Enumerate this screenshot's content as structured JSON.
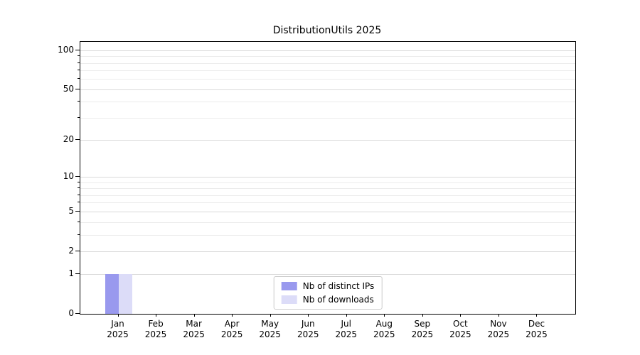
{
  "chart_data": {
    "type": "bar",
    "title": "DistributionUtils 2025",
    "x_categories": [
      "Jan",
      "Feb",
      "Mar",
      "Apr",
      "May",
      "Jun",
      "Jul",
      "Aug",
      "Sep",
      "Oct",
      "Nov",
      "Dec"
    ],
    "x_year_label": "2025",
    "series": [
      {
        "name": "Nb of distinct IPs",
        "color": "#9999ee",
        "values": [
          1,
          0,
          0,
          0,
          0,
          0,
          0,
          0,
          0,
          0,
          0,
          0
        ]
      },
      {
        "name": "Nb of downloads",
        "color": "#dcdcf8",
        "values": [
          1,
          0,
          0,
          0,
          0,
          0,
          0,
          0,
          0,
          0,
          0,
          0
        ]
      }
    ],
    "yticks": [
      0,
      1,
      2,
      5,
      10,
      20,
      50,
      100
    ],
    "y_minor_ticks": [
      3,
      4,
      6,
      7,
      8,
      9,
      30,
      40,
      60,
      70,
      80,
      90
    ],
    "ylim": [
      0,
      116
    ],
    "yscale": "log1p",
    "grid": true,
    "legend_position": "lower center"
  },
  "colors": {
    "grid_major": "#d9d9d9",
    "grid_minor": "#ececec",
    "axis": "#000000",
    "background": "#ffffff",
    "legend_border": "#cccccc"
  }
}
